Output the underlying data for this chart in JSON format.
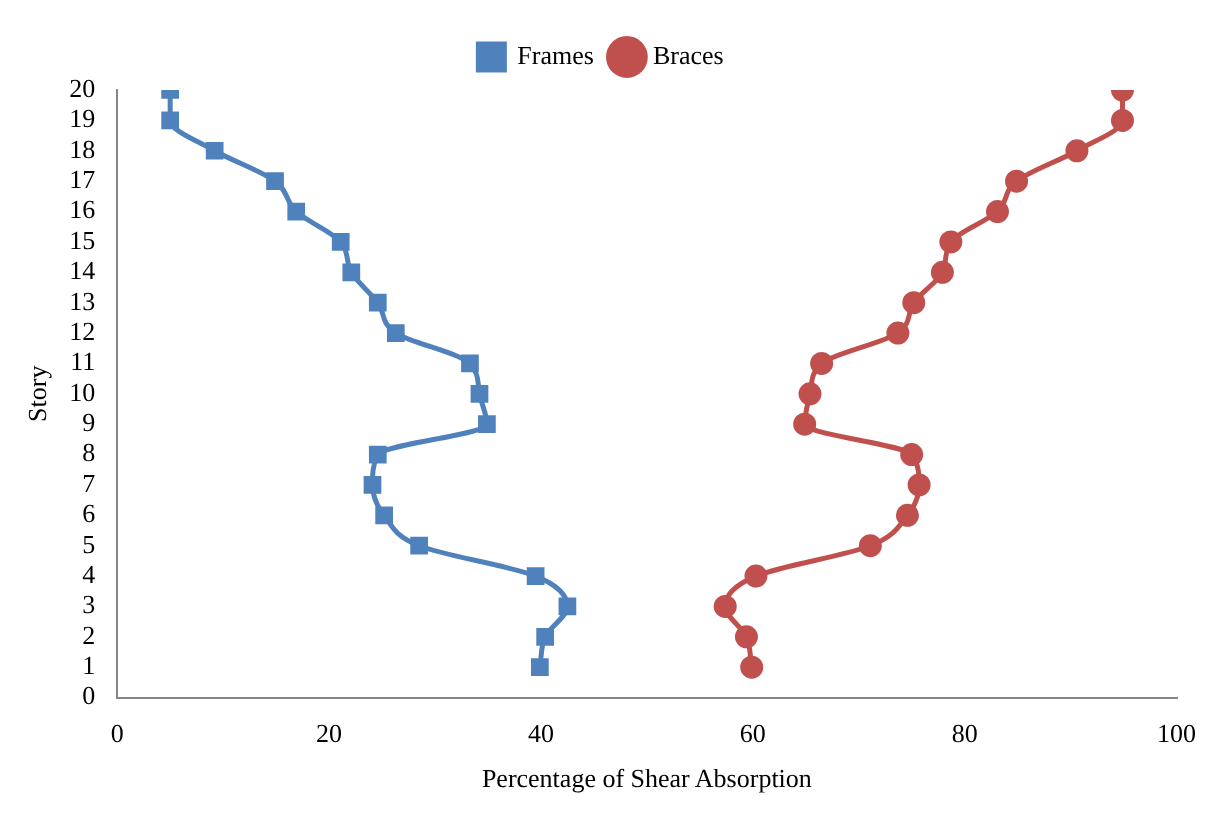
{
  "chart_data": {
    "type": "line",
    "xlabel": "Percentage of Shear Absorption",
    "ylabel": "Story",
    "xlim": [
      0,
      100
    ],
    "xticks": [
      0,
      20,
      40,
      60,
      80,
      100
    ],
    "ylim": [
      0,
      20
    ],
    "yticks": [
      0,
      1,
      2,
      3,
      4,
      5,
      6,
      7,
      8,
      9,
      10,
      11,
      12,
      13,
      14,
      15,
      16,
      17,
      18,
      19,
      20
    ],
    "grid": false,
    "legend": "top",
    "series": [
      {
        "name": "Frames",
        "color": "#4f81bd",
        "marker": "square",
        "x": [
          39.9,
          40.4,
          42.5,
          39.5,
          28.5,
          25.2,
          24.1,
          24.6,
          34.9,
          34.2,
          33.3,
          26.3,
          24.6,
          22.1,
          21.1,
          16.9,
          14.9,
          9.2,
          5.0,
          5.0
        ],
        "values": [
          1,
          2,
          3,
          4,
          5,
          6,
          7,
          8,
          9,
          10,
          11,
          12,
          13,
          14,
          15,
          16,
          17,
          18,
          19,
          20
        ]
      },
      {
        "name": "Braces",
        "color": "#c0504d",
        "marker": "circle",
        "x": [
          59.9,
          59.4,
          57.4,
          60.3,
          71.1,
          74.6,
          75.7,
          75.0,
          64.9,
          65.4,
          66.5,
          73.7,
          75.2,
          77.9,
          78.7,
          83.1,
          84.9,
          90.6,
          94.9,
          94.9
        ],
        "values": [
          1,
          2,
          3,
          4,
          5,
          6,
          7,
          8,
          9,
          10,
          11,
          12,
          13,
          14,
          15,
          16,
          17,
          18,
          19,
          20
        ]
      }
    ]
  }
}
